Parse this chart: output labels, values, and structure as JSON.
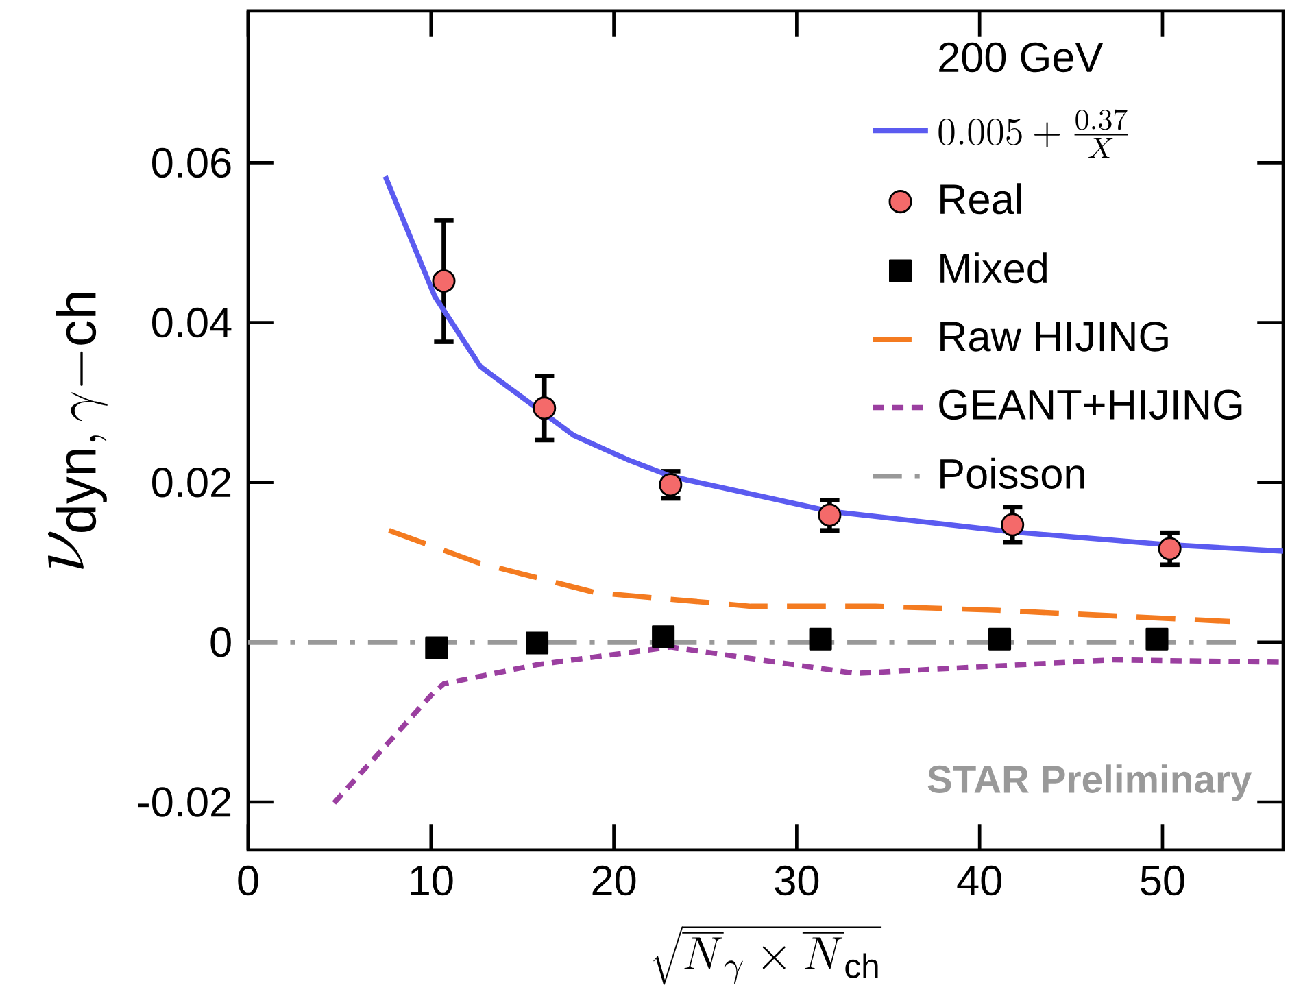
{
  "chart_data": {
    "type": "line",
    "xlabel": "\\sqrt{\\overline{N}_{\\gamma}\\times\\overline{N}_{\\mathrm{ch}}}",
    "ylabel": "\\nu_{\\mathrm{dyn},\\,\\gamma\\mathrm{-ch}}",
    "legend_title": "200 GeV",
    "xlim": [
      0,
      56.6
    ],
    "ylim": [
      -0.026,
      0.079
    ],
    "xticks": [
      0,
      10,
      20,
      30,
      40,
      50
    ],
    "yticks": [
      -0.02,
      0,
      0.02,
      0.04,
      0.06
    ],
    "legend": "top right",
    "grid": false,
    "annotations": [
      "STAR Preliminary"
    ],
    "series": [
      {
        "name": "0.005+\\frac{0.37}{X}",
        "type": "line",
        "color": "#5b5bf0",
        "marker": "none",
        "line_style": "solid",
        "x": [
          7.5,
          10.2,
          12.7,
          17.8,
          20.7,
          23.1,
          24.0,
          31.8,
          41.8,
          50.4,
          56.6
        ],
        "values": [
          0.0583,
          0.0433,
          0.0345,
          0.0259,
          0.0229,
          0.0208,
          0.0203,
          0.0164,
          0.0138,
          0.0122,
          0.0114
        ]
      },
      {
        "name": "Real",
        "type": "scatter",
        "color": "#f46a6a",
        "marker": "circle",
        "x": [
          10.7,
          16.2,
          23.1,
          31.8,
          41.8,
          50.4
        ],
        "values": [
          0.0452,
          0.0293,
          0.0197,
          0.0159,
          0.0147,
          0.0117
        ],
        "errors": [
          0.0076,
          0.004,
          0.0017,
          0.0019,
          0.0022,
          0.002
        ]
      },
      {
        "name": "Mixed",
        "type": "scatter",
        "color": "#000000",
        "marker": "square",
        "x": [
          10.3,
          15.8,
          22.7,
          31.3,
          41.1,
          49.7
        ],
        "values": [
          -0.0007,
          -0.0001,
          0.0007,
          0.0004,
          0.0004,
          0.0004
        ]
      },
      {
        "name": "Raw HIJING",
        "type": "line",
        "color": "#f47b20",
        "marker": "none",
        "line_style": "dashed",
        "x": [
          7.7,
          12.5,
          19.0,
          27.5,
          34.3,
          41.0,
          53.7
        ],
        "values": [
          0.014,
          0.01,
          0.0062,
          0.0045,
          0.0045,
          0.004,
          0.0026
        ]
      },
      {
        "name": "GEANT+HIJING",
        "type": "line",
        "color": "#9b3fa0",
        "marker": "none",
        "line_style": "dotted",
        "x": [
          4.7,
          10.1,
          10.7,
          15.8,
          23.1,
          24.0,
          33.2,
          47.3,
          56.6
        ],
        "values": [
          -0.0201,
          -0.0064,
          -0.0052,
          -0.0028,
          -0.0006,
          -0.0009,
          -0.0039,
          -0.0022,
          -0.0025
        ]
      },
      {
        "name": "Poisson",
        "type": "line",
        "color": "#999999",
        "marker": "none",
        "line_style": "dashdot",
        "x": [
          0,
          54.3
        ],
        "values": [
          0,
          0
        ]
      }
    ]
  }
}
